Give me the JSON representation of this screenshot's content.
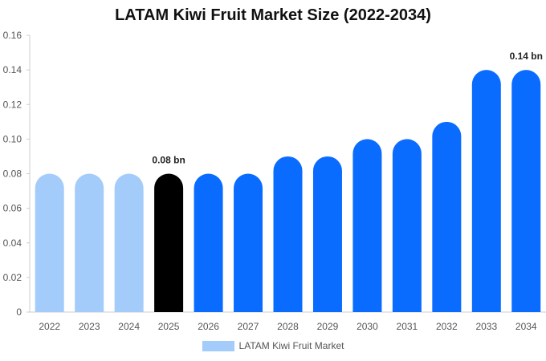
{
  "chart_data": {
    "type": "bar",
    "title": "LATAM Kiwi Fruit Market Size (2022-2034)",
    "categories": [
      "2022",
      "2023",
      "2024",
      "2025",
      "2026",
      "2027",
      "2028",
      "2029",
      "2030",
      "2031",
      "2032",
      "2033",
      "2034"
    ],
    "series": [
      {
        "name": "LATAM Kiwi Fruit Market",
        "values": [
          0.08,
          0.08,
          0.08,
          0.08,
          0.08,
          0.08,
          0.09,
          0.09,
          0.1,
          0.1,
          0.11,
          0.14,
          0.14
        ]
      }
    ],
    "ylim": [
      0,
      0.16
    ],
    "yticks": [
      "0",
      "0.02",
      "0.04",
      "0.06",
      "0.08",
      "0.10",
      "0.12",
      "0.14",
      "0.16"
    ],
    "data_labels": [
      {
        "category": "2025",
        "text": "0.08 bn"
      },
      {
        "category": "2034",
        "text": "0.14 bn"
      }
    ],
    "bar_colors": {
      "historical": "#a3ccfa",
      "base_year": "#000000",
      "forecast": "#0a6cff"
    },
    "base_year": "2025",
    "grid": false,
    "legend_position": "bottom"
  }
}
